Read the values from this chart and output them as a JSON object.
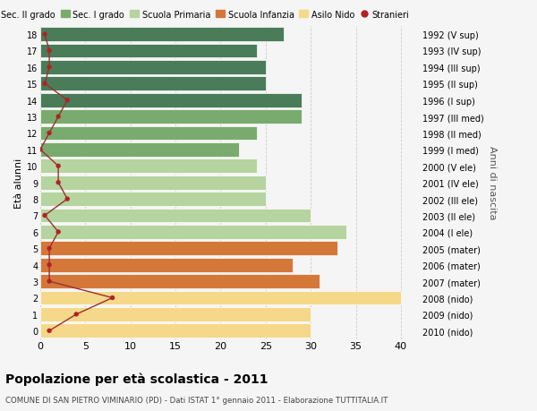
{
  "title": "Popolazione per età scolastica - 2011",
  "subtitle": "COMUNE DI SAN PIETRO VIMINARIO (PD) - Dati ISTAT 1° gennaio 2011 - Elaborazione TUTTITALIA.IT",
  "ylabel": "Età alunni",
  "right_ylabel": "Anni di nascita",
  "ages": [
    18,
    17,
    16,
    15,
    14,
    13,
    12,
    11,
    10,
    9,
    8,
    7,
    6,
    5,
    4,
    3,
    2,
    1,
    0
  ],
  "years": [
    "1992 (V sup)",
    "1993 (IV sup)",
    "1994 (III sup)",
    "1995 (II sup)",
    "1996 (I sup)",
    "1997 (III med)",
    "1998 (II med)",
    "1999 (I med)",
    "2000 (V ele)",
    "2001 (IV ele)",
    "2002 (III ele)",
    "2003 (II ele)",
    "2004 (I ele)",
    "2005 (mater)",
    "2006 (mater)",
    "2007 (mater)",
    "2008 (nido)",
    "2009 (nido)",
    "2010 (nido)"
  ],
  "bar_values": [
    27,
    24,
    25,
    25,
    29,
    29,
    24,
    22,
    24,
    25,
    25,
    30,
    34,
    33,
    28,
    31,
    40,
    30,
    30
  ],
  "bar_colors": [
    "#4a7c59",
    "#4a7c59",
    "#4a7c59",
    "#4a7c59",
    "#4a7c59",
    "#7aab6e",
    "#7aab6e",
    "#7aab6e",
    "#b5d4a0",
    "#b5d4a0",
    "#b5d4a0",
    "#b5d4a0",
    "#b5d4a0",
    "#d4783a",
    "#d4783a",
    "#d4783a",
    "#f5d88a",
    "#f5d88a",
    "#f5d88a"
  ],
  "stranieri_values": [
    0.5,
    1,
    1,
    0.5,
    3,
    2,
    1,
    0,
    2,
    2,
    3,
    0.5,
    2,
    1,
    1,
    1,
    8,
    4,
    1
  ],
  "legend_labels": [
    "Sec. II grado",
    "Sec. I grado",
    "Scuola Primaria",
    "Scuola Infanzia",
    "Asilo Nido",
    "Stranieri"
  ],
  "legend_colors": [
    "#4a7c59",
    "#7aab6e",
    "#b5d4a0",
    "#d4783a",
    "#f5d88a",
    "#b22222"
  ],
  "xlim": [
    0,
    42
  ],
  "ylim": [
    -0.5,
    18.5
  ],
  "background_color": "#f5f5f5",
  "grid_color": "#cccccc"
}
